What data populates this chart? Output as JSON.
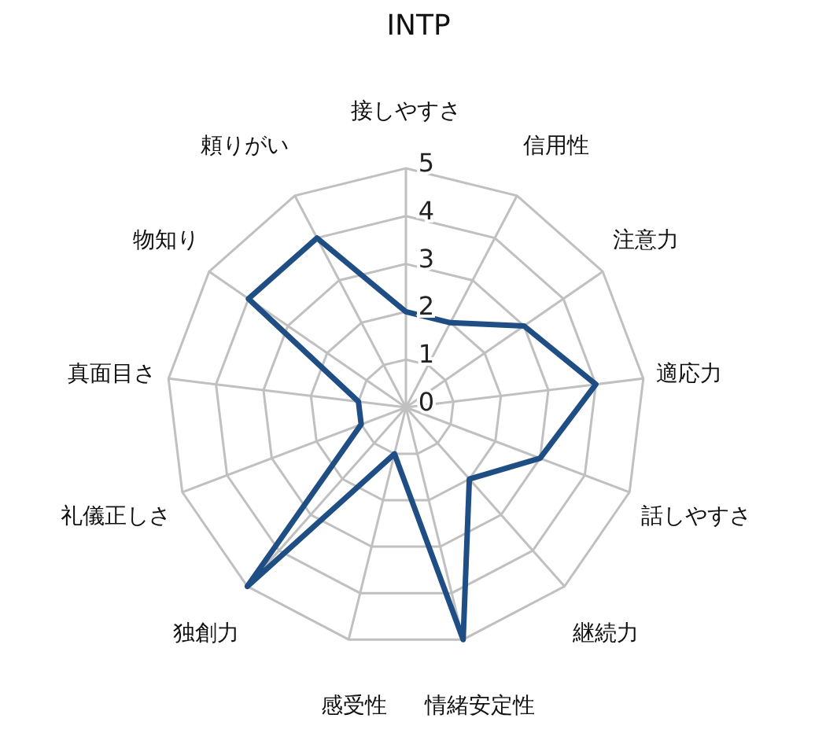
{
  "chart_data": {
    "type": "radar",
    "title": "INTP",
    "categories": [
      "接しやすさ",
      "信用性",
      "注意力",
      "適応力",
      "話しやすさ",
      "継続力",
      "情緒安定性",
      "感受性",
      "独創力",
      "礼儀正しさ",
      "真面目さ",
      "物知り",
      "頼りがい"
    ],
    "series": [
      {
        "color": "#1f4e84",
        "values": [
          2,
          2,
          3,
          4,
          3,
          2,
          5,
          1,
          5,
          1,
          1,
          4,
          4
        ]
      }
    ],
    "ylim": [
      0,
      5
    ],
    "yticks": [
      0,
      1,
      2,
      3,
      4,
      5
    ],
    "grid": true
  }
}
